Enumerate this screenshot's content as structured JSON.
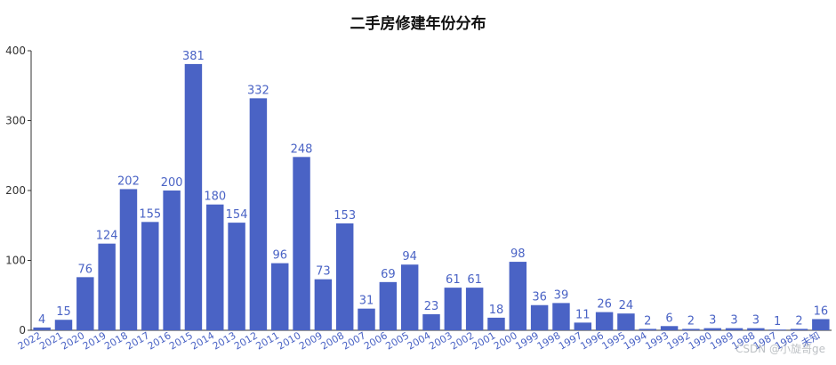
{
  "chart_data": {
    "type": "bar",
    "title": "二手房修建年份分布",
    "categories": [
      "2022",
      "2021",
      "2020",
      "2019",
      "2018",
      "2017",
      "2016",
      "2015",
      "2014",
      "2013",
      "2012",
      "2011",
      "2010",
      "2009",
      "2008",
      "2007",
      "2006",
      "2005",
      "2004",
      "2003",
      "2002",
      "2001",
      "2000",
      "1999",
      "1998",
      "1997",
      "1996",
      "1995",
      "1994",
      "1993",
      "1992",
      "1990",
      "1989",
      "1988",
      "1987",
      "1985",
      "未知"
    ],
    "values": [
      4,
      15,
      76,
      124,
      202,
      155,
      200,
      381,
      180,
      154,
      332,
      96,
      248,
      73,
      153,
      31,
      69,
      94,
      23,
      61,
      61,
      18,
      98,
      36,
      39,
      11,
      26,
      24,
      2,
      6,
      2,
      3,
      3,
      3,
      1,
      2,
      16
    ],
    "ylim": [
      0,
      400
    ],
    "yticks": [
      0,
      100,
      200,
      300,
      400
    ],
    "xlabel": "",
    "ylabel": "",
    "grid": false,
    "colors": {
      "bar": "#4a63c5",
      "label": "#4a63c5",
      "axis": "#333333"
    }
  },
  "watermark": "CSDN @小旋哥ge"
}
